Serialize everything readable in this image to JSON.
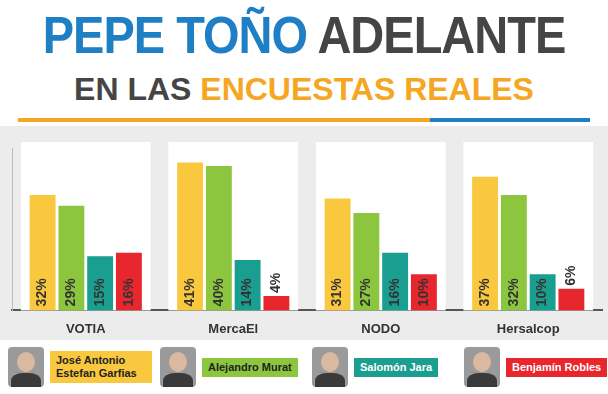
{
  "chart_data": {
    "type": "bar",
    "title": "PEPE TOÑO ADELANTE",
    "subtitle": "EN LAS ENCUESTAS REALES",
    "categories": [
      "VOTIA",
      "MercaEl",
      "NODO",
      "Hersalcop"
    ],
    "series": [
      {
        "name": "José Antonio Estefan Garfias",
        "color": "#f9c83e",
        "values": [
          32,
          41,
          31,
          37
        ],
        "value_labels": [
          "32%",
          "41%",
          "31%",
          "37%"
        ]
      },
      {
        "name": "Alejandro Murat",
        "color": "#8cc63f",
        "values": [
          29,
          40,
          27,
          32
        ],
        "value_labels": [
          "29%",
          "40%",
          "27%",
          "32%"
        ]
      },
      {
        "name": "Salomón Jara",
        "color": "#1a9e8f",
        "values": [
          15,
          14,
          16,
          10
        ],
        "value_labels": [
          "15%",
          "14%",
          "16%",
          "10%"
        ]
      },
      {
        "name": "Benjamín Robles",
        "color": "#e8262d",
        "values": [
          16,
          4,
          10,
          6
        ],
        "value_labels": [
          "16%",
          "4%",
          "10%",
          "6%"
        ]
      }
    ],
    "ylim": [
      0,
      45
    ],
    "grid": false,
    "legend": "bottom",
    "data_labels": true,
    "tick_labels": "x"
  }
}
